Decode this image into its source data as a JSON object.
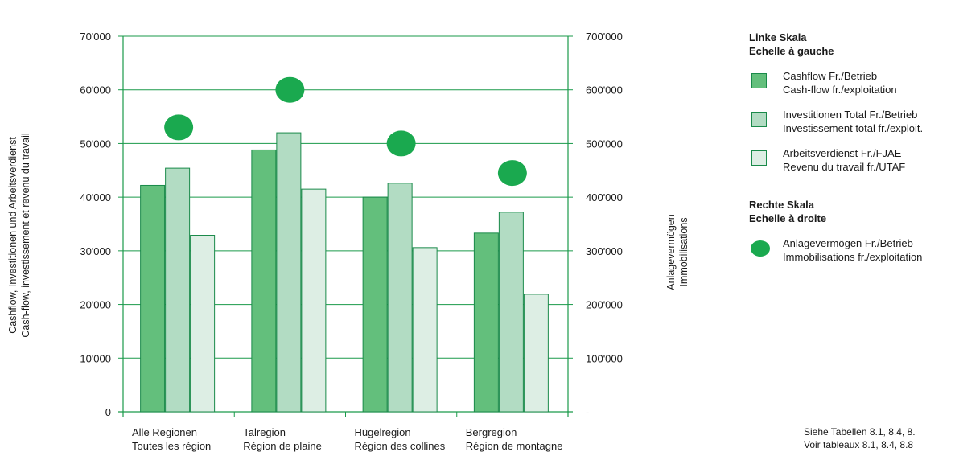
{
  "chart_data": {
    "type": "bar",
    "categories": [
      [
        "Alle Regionen",
        "Toutes les région"
      ],
      [
        "Talregion",
        "Région de plaine"
      ],
      [
        "Hügelregion",
        "Région des collines"
      ],
      [
        "Bergregion",
        "Région de montagne"
      ]
    ],
    "series": [
      {
        "name": "Cashflow Fr./Betrieb",
        "name_fr": "Cash-flow fr./exploitation",
        "axis": "left",
        "kind": "bar",
        "color": "#63bf7c",
        "values": [
          42200,
          48800,
          40000,
          33300
        ]
      },
      {
        "name": "Investitionen Total Fr./Betrieb",
        "name_fr": "Investissement total fr./exploit.",
        "axis": "left",
        "kind": "bar",
        "color": "#b2dcc3",
        "values": [
          45400,
          52000,
          42600,
          37200
        ]
      },
      {
        "name": "Arbeitsverdienst Fr./FJAE",
        "name_fr": "Revenu du travail fr./UTAF",
        "axis": "left",
        "kind": "bar",
        "color": "#ddeee4",
        "values": [
          32900,
          41500,
          30600,
          21900
        ]
      },
      {
        "name": "Anlagevermögen Fr./Betrieb",
        "name_fr": "Immobilisations fr./exploitation",
        "axis": "right",
        "kind": "dot",
        "color": "#1aa94f",
        "values": [
          530000,
          600000,
          500000,
          445000
        ]
      }
    ],
    "ylabel_left": [
      "Cashflow, Investitionen und Arbeitsverdienst",
      "Cash-flow, investissement et revenu du travail"
    ],
    "ylabel_right": [
      "Anlagevermögen",
      "Immobilisations"
    ],
    "ylim_left": [
      0,
      70000
    ],
    "ylim_right": [
      0,
      700000
    ],
    "yticks_left": [
      "0",
      "10'000",
      "20'000",
      "30'000",
      "40'000",
      "50'000",
      "60'000",
      "70'000"
    ],
    "yticks_right": [
      "-",
      "100'000",
      "200'000",
      "300'000",
      "400'000",
      "500'000",
      "600'000",
      "700'000"
    ],
    "grid": "horizontal",
    "legend_placement": "right",
    "axis_color": "#1a9a4a"
  },
  "legend": {
    "left_title": [
      "Linke Skala",
      "Echelle à gauche"
    ],
    "right_title": [
      "Rechte Skala",
      "Echelle à droite"
    ]
  },
  "source": [
    "Siehe Tabellen 8.1, 8.4, 8.",
    "Voir tableaux 8.1, 8.4, 8.8"
  ]
}
